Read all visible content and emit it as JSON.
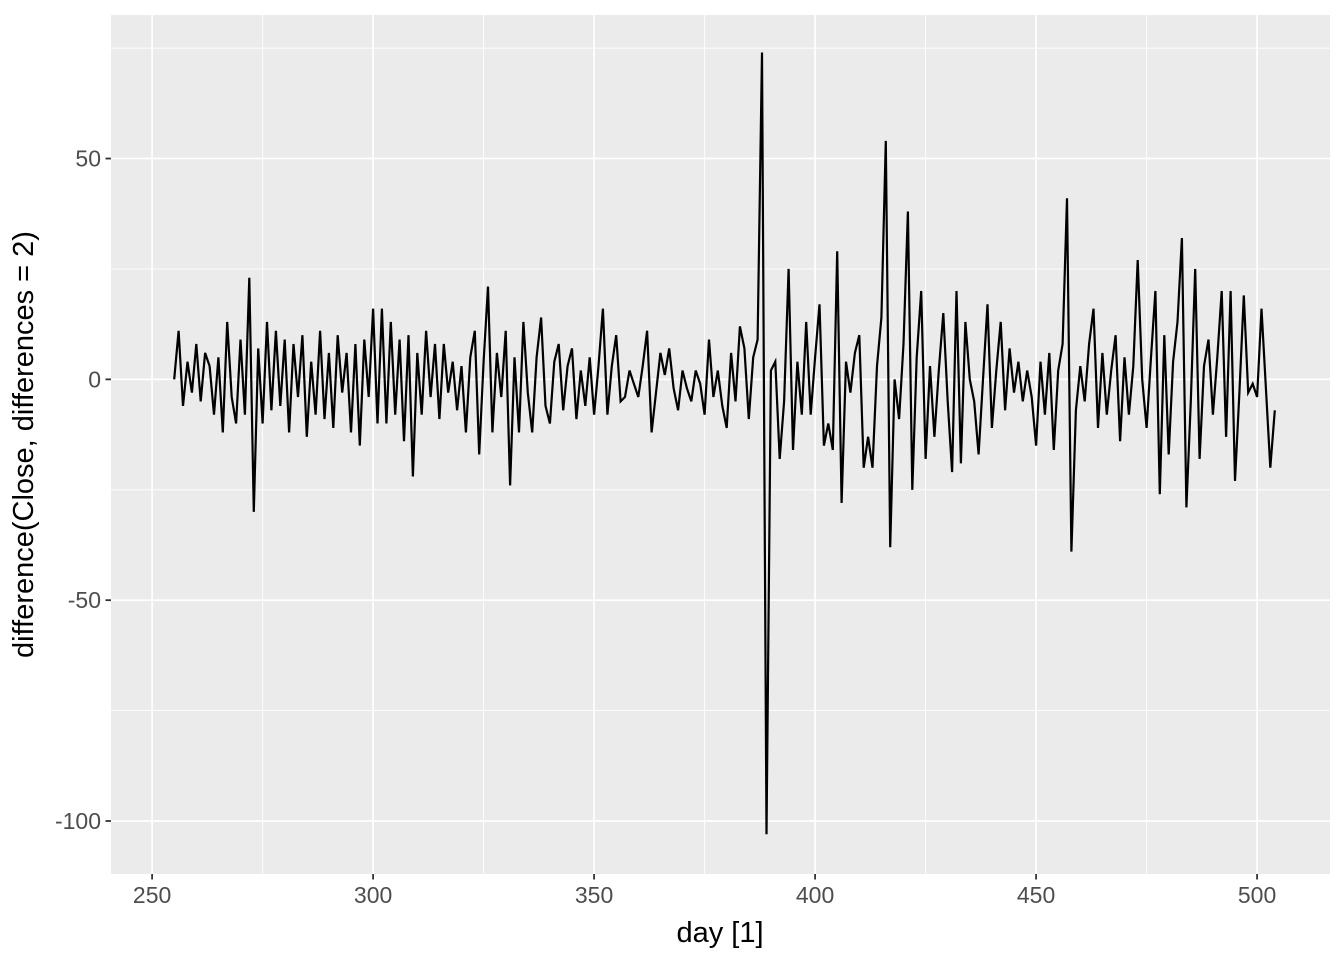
{
  "chart_data": {
    "type": "line",
    "title": "",
    "xlabel": "day [1]",
    "ylabel": "difference(Close, differences = 2)",
    "legend": "none",
    "grid": "major+minor",
    "x_start": 255,
    "x_step": 1,
    "x_end": 504,
    "xlim": [
      240.7,
      516.5
    ],
    "ylim": [
      -112,
      82.5
    ],
    "x_ticks": [
      250,
      300,
      350,
      400,
      450,
      500
    ],
    "y_ticks": [
      -100,
      -50,
      0,
      50
    ],
    "x_minor_ticks": [
      275,
      325,
      375,
      425,
      475
    ],
    "y_minor_ticks": [
      -75,
      -25,
      25,
      75
    ],
    "values": [
      0,
      11,
      -6,
      4,
      -3,
      8,
      -5,
      6,
      3,
      -8,
      5,
      -12,
      13,
      -4,
      -10,
      9,
      -8,
      23,
      -30,
      7,
      -10,
      13,
      -7,
      11,
      -6,
      9,
      -12,
      8,
      -4,
      10,
      -13,
      4,
      -8,
      11,
      -9,
      6,
      -11,
      10,
      -3,
      6,
      -12,
      8,
      -15,
      9,
      -4,
      16,
      -10,
      16,
      -10,
      13,
      -8,
      9,
      -14,
      10,
      -22,
      6,
      -8,
      11,
      -4,
      8,
      -9,
      8,
      -3,
      4,
      -7,
      3,
      -12,
      5,
      11,
      -17,
      4,
      21,
      -12,
      6,
      -4,
      11,
      -24,
      5,
      -12,
      13,
      -3,
      -12,
      5,
      14,
      -6,
      -10,
      4,
      8,
      -7,
      3,
      7,
      -9,
      2,
      -6,
      5,
      -8,
      3,
      16,
      -8,
      3,
      10,
      -5,
      -4,
      2,
      -1,
      -4,
      3,
      11,
      -12,
      -3,
      6,
      1,
      7,
      -2,
      -7,
      2,
      -2,
      -5,
      2,
      -1,
      -8,
      9,
      -4,
      2,
      -6,
      -11,
      6,
      -5,
      12,
      7,
      -9,
      5,
      9,
      74,
      -103,
      2,
      4,
      -18,
      -5,
      25,
      -16,
      4,
      -8,
      13,
      -8,
      5,
      17,
      -15,
      -10,
      -16,
      29,
      -28,
      4,
      -3,
      6,
      10,
      -20,
      -13,
      -20,
      3,
      14,
      54,
      -38,
      0,
      -9,
      8,
      38,
      -25,
      5,
      20,
      -18,
      3,
      -13,
      2,
      15,
      -5,
      -21,
      20,
      -19,
      13,
      0,
      -5,
      -17,
      0,
      17,
      -11,
      2,
      13,
      -7,
      7,
      -3,
      4,
      -5,
      2,
      -4,
      -15,
      4,
      -8,
      6,
      -16,
      2,
      8,
      41,
      -39,
      -7,
      3,
      -5,
      8,
      16,
      -11,
      6,
      -8,
      2,
      10,
      -14,
      5,
      -8,
      3,
      27,
      0,
      -11,
      5,
      20,
      -26,
      10,
      -17,
      4,
      13,
      32,
      -29,
      -5,
      25,
      -18,
      3,
      9,
      -8,
      5,
      20,
      -13,
      20,
      -23,
      -3,
      19,
      -3,
      -1,
      -4,
      16,
      -2,
      -20,
      -7
    ],
    "theme": {
      "background": "#FFFFFF",
      "panel_bg": "#EBEBEB",
      "grid_color": "#FFFFFF",
      "line_color": "#000000",
      "tick_mark_color": "#333333",
      "tick_label_color": "#4D4D4D",
      "axis_title_color": "#000000"
    }
  }
}
